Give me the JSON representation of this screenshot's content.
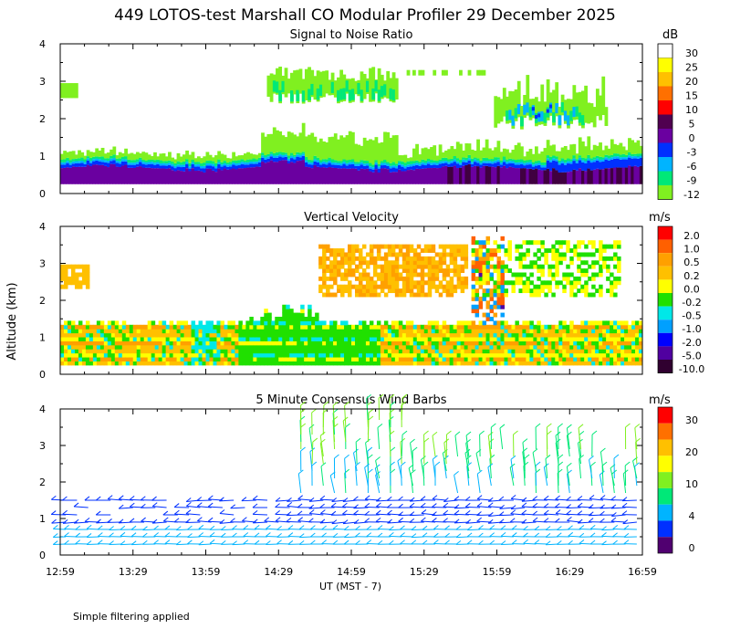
{
  "page": {
    "title": "449 LOTOS-test Marshall CO Modular Profiler 29 December 2025",
    "footnote": "Simple filtering applied",
    "y_axis_label": "Altitude (km)",
    "x_axis_label": "UT  (MST - 7)"
  },
  "chart_data": [
    {
      "type": "heatmap",
      "title": "Signal to Noise Ratio",
      "xlabel": "UT  (MST - 7)",
      "ylabel": "Altitude (km)",
      "x_ticks": [
        "12:59",
        "13:29",
        "13:59",
        "14:29",
        "14:59",
        "15:29",
        "15:59",
        "16:29",
        "16:59"
      ],
      "y_ticks": [
        "0",
        "1",
        "2",
        "3",
        "4"
      ],
      "ylim": [
        0,
        4
      ],
      "colorbar": {
        "unit": "dB",
        "labels": [
          "30",
          "25",
          "20",
          "15",
          "10",
          "5",
          "0",
          "-3",
          "-6",
          "-9",
          "-12"
        ],
        "colors": [
          "#ffffff",
          "#ffff00",
          "#ffc000",
          "#ff7000",
          "#ff0000",
          "#500050",
          "#6a00a0",
          "#0030ff",
          "#00b4ff",
          "#00e878",
          "#80f020"
        ]
      }
    },
    {
      "type": "heatmap",
      "title": "Vertical Velocity",
      "xlabel": "UT  (MST - 7)",
      "ylabel": "Altitude (km)",
      "x_ticks": [
        "12:59",
        "13:29",
        "13:59",
        "14:29",
        "14:59",
        "15:29",
        "15:59",
        "16:29",
        "16:59"
      ],
      "y_ticks": [
        "0",
        "1",
        "2",
        "3",
        "4"
      ],
      "ylim": [
        0,
        4
      ],
      "colorbar": {
        "unit": "m/s",
        "labels": [
          "2.0",
          "1.0",
          "0.5",
          "0.2",
          "0.0",
          "-0.2",
          "-0.5",
          "-1.0",
          "-2.0",
          "-5.0",
          "-10.0"
        ],
        "colors": [
          "#ff0000",
          "#ff6000",
          "#ffa000",
          "#ffc000",
          "#ffff00",
          "#20e000",
          "#00e8e8",
          "#00a0ff",
          "#0000ff",
          "#5000a0",
          "#300030"
        ]
      }
    },
    {
      "type": "scatter",
      "title": "5 Minute Consensus Wind Barbs",
      "xlabel": "UT  (MST - 7)",
      "ylabel": "Altitude (km)",
      "x_ticks": [
        "12:59",
        "13:29",
        "13:59",
        "14:29",
        "14:59",
        "15:29",
        "15:59",
        "16:29",
        "16:59"
      ],
      "y_ticks": [
        "0",
        "1",
        "2",
        "3",
        "4"
      ],
      "ylim": [
        0,
        4
      ],
      "colorbar": {
        "unit": "m/s",
        "labels": [
          "30",
          "20",
          "10",
          "4",
          "0"
        ],
        "colors": [
          "#ff0000",
          "#ff7000",
          "#ffc000",
          "#ffff00",
          "#80f020",
          "#00e878",
          "#00b4ff",
          "#0030ff",
          "#500070"
        ]
      }
    }
  ]
}
